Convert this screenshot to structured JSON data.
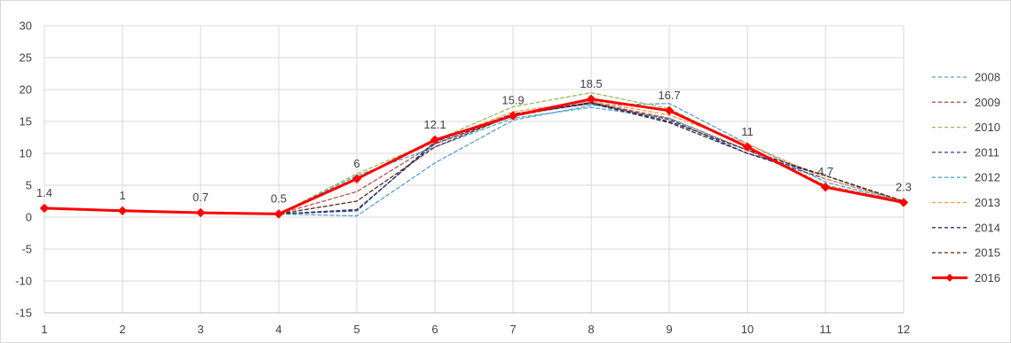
{
  "chart_data": {
    "type": "line",
    "x": [
      1,
      2,
      3,
      4,
      5,
      6,
      7,
      8,
      9,
      10,
      11,
      12
    ],
    "ylim": [
      -15,
      30
    ],
    "yticks": [
      -15,
      -10,
      -5,
      0,
      5,
      10,
      15,
      20,
      25,
      30
    ],
    "grid": true,
    "legend_position": "right",
    "series": [
      {
        "name": "2008",
        "color": "#5b9bd5",
        "dashed": true,
        "values": [
          1.4,
          1.0,
          0.7,
          0.5,
          0.2,
          8.5,
          15.2,
          17.5,
          17.8,
          11.5,
          5.5,
          2.4
        ]
      },
      {
        "name": "2009",
        "color": "#c0504d",
        "dashed": true,
        "values": [
          1.4,
          1.0,
          0.7,
          0.5,
          4.0,
          11.5,
          15.8,
          18.0,
          15.5,
          10.5,
          5.0,
          2.4
        ]
      },
      {
        "name": "2010",
        "color": "#9bbb59",
        "dashed": true,
        "values": [
          1.4,
          1.0,
          0.7,
          0.5,
          6.8,
          12.0,
          17.3,
          19.5,
          17.0,
          11.0,
          5.0,
          2.3
        ]
      },
      {
        "name": "2011",
        "color": "#3f3f8f",
        "dashed": true,
        "values": [
          1.4,
          1.0,
          0.7,
          0.5,
          1.2,
          11.5,
          16.0,
          17.8,
          15.3,
          10.0,
          6.0,
          2.5
        ]
      },
      {
        "name": "2012",
        "color": "#4bacc6",
        "dashed": true,
        "values": [
          1.4,
          1.0,
          0.7,
          0.5,
          6.5,
          11.0,
          15.5,
          17.2,
          15.5,
          10.5,
          6.5,
          2.3
        ]
      },
      {
        "name": "2013",
        "color": "#f79646",
        "dashed": true,
        "values": [
          1.4,
          1.0,
          0.7,
          0.5,
          6.2,
          11.8,
          16.5,
          18.2,
          16.0,
          11.5,
          6.0,
          2.4
        ]
      },
      {
        "name": "2014",
        "color": "#1f3864",
        "dashed": true,
        "values": [
          1.4,
          1.0,
          0.7,
          0.5,
          1.0,
          11.8,
          16.2,
          17.8,
          14.8,
          10.0,
          6.5,
          2.5
        ]
      },
      {
        "name": "2015",
        "color": "#5a2a1a",
        "dashed": true,
        "values": [
          1.4,
          1.0,
          0.7,
          0.5,
          2.5,
          11.0,
          16.0,
          18.0,
          15.0,
          10.5,
          6.5,
          2.5
        ]
      },
      {
        "name": "2016",
        "color": "#ff0000",
        "dashed": false,
        "values": [
          1.4,
          1.0,
          0.7,
          0.5,
          6.0,
          12.1,
          15.9,
          18.5,
          16.7,
          11.0,
          4.7,
          2.3
        ],
        "labels": [
          "1.4",
          "1",
          "0.7",
          "0.5",
          "6",
          "12.1",
          "15.9",
          "18.5",
          "16.7",
          "11",
          "4.7",
          "2.3"
        ]
      }
    ]
  }
}
